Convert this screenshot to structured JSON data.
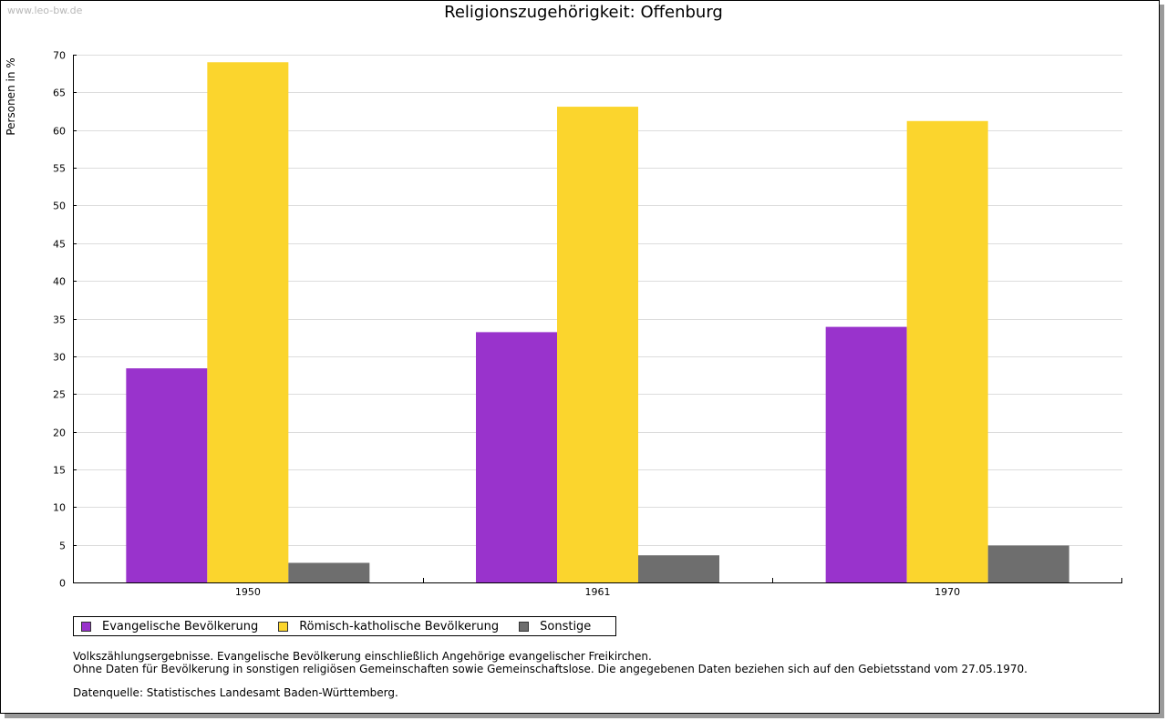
{
  "watermark": "www.leo-bw.de",
  "chart_data": {
    "type": "bar",
    "title": "Religionszugehörigkeit: Offenburg",
    "xlabel": "",
    "ylabel": "Personen in %",
    "ylim": [
      0,
      70
    ],
    "yticks": [
      0,
      5,
      10,
      15,
      20,
      25,
      30,
      35,
      40,
      45,
      50,
      55,
      60,
      65,
      70
    ],
    "categories": [
      "1950",
      "1961",
      "1970"
    ],
    "grid": true,
    "legend_position": "bottom-left",
    "series": [
      {
        "name": "Evangelische Bevölkerung",
        "color": "#9933cc",
        "values": [
          28.4,
          33.2,
          33.9
        ]
      },
      {
        "name": "Römisch-katholische Bevölkerung",
        "color": "#fbd52d",
        "values": [
          69.0,
          63.1,
          61.2
        ]
      },
      {
        "name": "Sonstige",
        "color": "#6e6e6e",
        "values": [
          2.6,
          3.6,
          4.9
        ]
      }
    ]
  },
  "notes": {
    "line1": "Volkszählungsergebnisse. Evangelische Bevölkerung einschließlich Angehörige evangelischer Freikirchen.",
    "line2": "Ohne Daten für Bevölkerung in sonstigen religiösen Gemeinschaften sowie Gemeinschaftslose. Die angegebenen Daten beziehen sich auf den Gebietsstand vom 27.05.1970.",
    "source": "Datenquelle: Statistisches Landesamt Baden-Württemberg."
  }
}
